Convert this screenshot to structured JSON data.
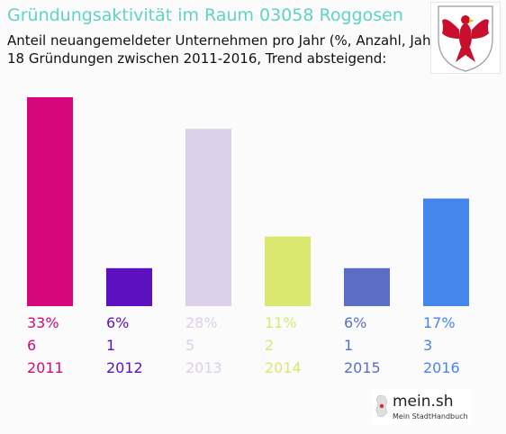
{
  "header": {
    "title": "Gründungsaktivität im Raum 03058 Roggosen",
    "subtitle_line1": "Anteil neuangemeldeter Unternehmen pro Jahr (%, Anzahl, Jahr)",
    "subtitle_line2": "18 Gründungen zwischen 2011-2016, Trend absteigend:"
  },
  "emblem": {
    "icon": "eagle-coat-of-arms-icon",
    "color": "#c8102e"
  },
  "logo": {
    "name": "mein.sh",
    "tagline": "Mein StadtHandbuch",
    "accent": "#e8242b"
  },
  "chart_data": {
    "type": "bar",
    "title": "Gründungsaktivität im Raum 03058 Roggosen",
    "categories": [
      "2011",
      "2012",
      "2013",
      "2014",
      "2015",
      "2016"
    ],
    "values": [
      33,
      6,
      28,
      11,
      6,
      17
    ],
    "percent_labels": [
      "33%",
      "6%",
      "28%",
      "11%",
      "6%",
      "17%"
    ],
    "counts": [
      "6",
      "1",
      "5",
      "2",
      "1",
      "3"
    ],
    "colors": [
      "#d6077a",
      "#5c10bf",
      "#dcd0ea",
      "#dbe86f",
      "#5b6ec6",
      "#4486ec"
    ],
    "ylim": [
      0,
      33
    ],
    "grid": false,
    "legend": "none"
  }
}
